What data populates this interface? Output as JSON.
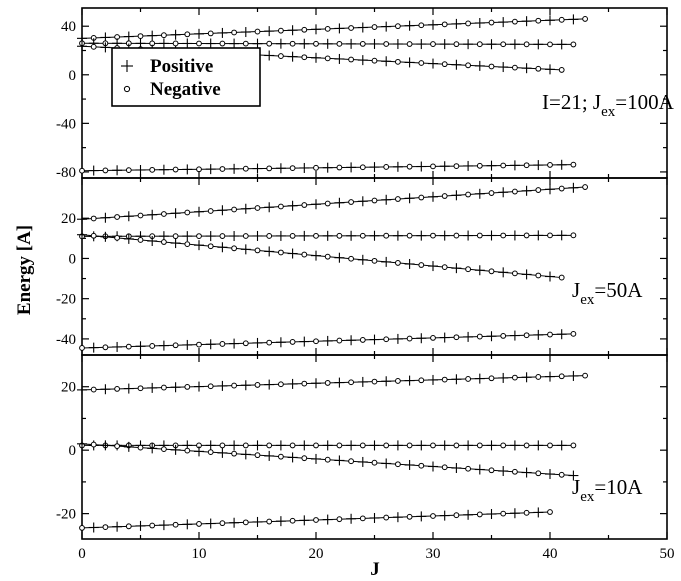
{
  "chart_data": {
    "type": "scatter",
    "xlabel": "J",
    "ylabel": "Energy [A]",
    "xlim": [
      0,
      50
    ],
    "x_ticks": [
      0,
      10,
      20,
      30,
      40,
      50
    ],
    "legend": {
      "placement": "top-left of top panel",
      "entries": [
        {
          "label": "Positive",
          "marker": "plus"
        },
        {
          "label": "Negative",
          "marker": "circle"
        }
      ]
    },
    "panels": [
      {
        "annotation": {
          "prefix": "I=21; J",
          "sub": "ex",
          "suffix": "=100A"
        },
        "ylim": [
          -85,
          55
        ],
        "y_ticks": [
          -80,
          -40,
          0,
          40
        ],
        "bands": [
          {
            "x_start": 0,
            "x_end": 43,
            "y_start": 30,
            "y_end": 46
          },
          {
            "x_start": 0,
            "x_end": 42,
            "y_start": 26,
            "y_end": 25
          },
          {
            "x_start": 0,
            "x_end": 41,
            "y_start": 23.5,
            "y_end": 4
          },
          {
            "x_start": 0,
            "x_end": 42,
            "y_start": -79,
            "y_end": -74
          }
        ]
      },
      {
        "annotation": {
          "prefix": "J",
          "sub": "ex",
          "suffix": "=50A"
        },
        "ylim": [
          -48,
          40
        ],
        "y_ticks": [
          -40,
          -20,
          0,
          20
        ],
        "bands": [
          {
            "x_start": 0,
            "x_end": 43,
            "y_start": 19.5,
            "y_end": 35.5
          },
          {
            "x_start": 0,
            "x_end": 42,
            "y_start": 11,
            "y_end": 11.5
          },
          {
            "x_start": 0,
            "x_end": 41,
            "y_start": 11.8,
            "y_end": -9.5
          },
          {
            "x_start": 0,
            "x_end": 42,
            "y_start": -44.5,
            "y_end": -37.5
          }
        ]
      },
      {
        "annotation": {
          "prefix": "J",
          "sub": "ex",
          "suffix": "=10A"
        },
        "ylim": [
          -28,
          30
        ],
        "y_ticks": [
          -20,
          0,
          20
        ],
        "bands": [
          {
            "x_start": 0,
            "x_end": 43,
            "y_start": 19,
            "y_end": 23.5
          },
          {
            "x_start": 0,
            "x_end": 42,
            "y_start": 1.5,
            "y_end": 1.5
          },
          {
            "x_start": 0,
            "x_end": 42,
            "y_start": 2,
            "y_end": -8
          },
          {
            "x_start": 0,
            "x_end": 40,
            "y_start": -24.5,
            "y_end": -19.5
          }
        ]
      }
    ]
  }
}
